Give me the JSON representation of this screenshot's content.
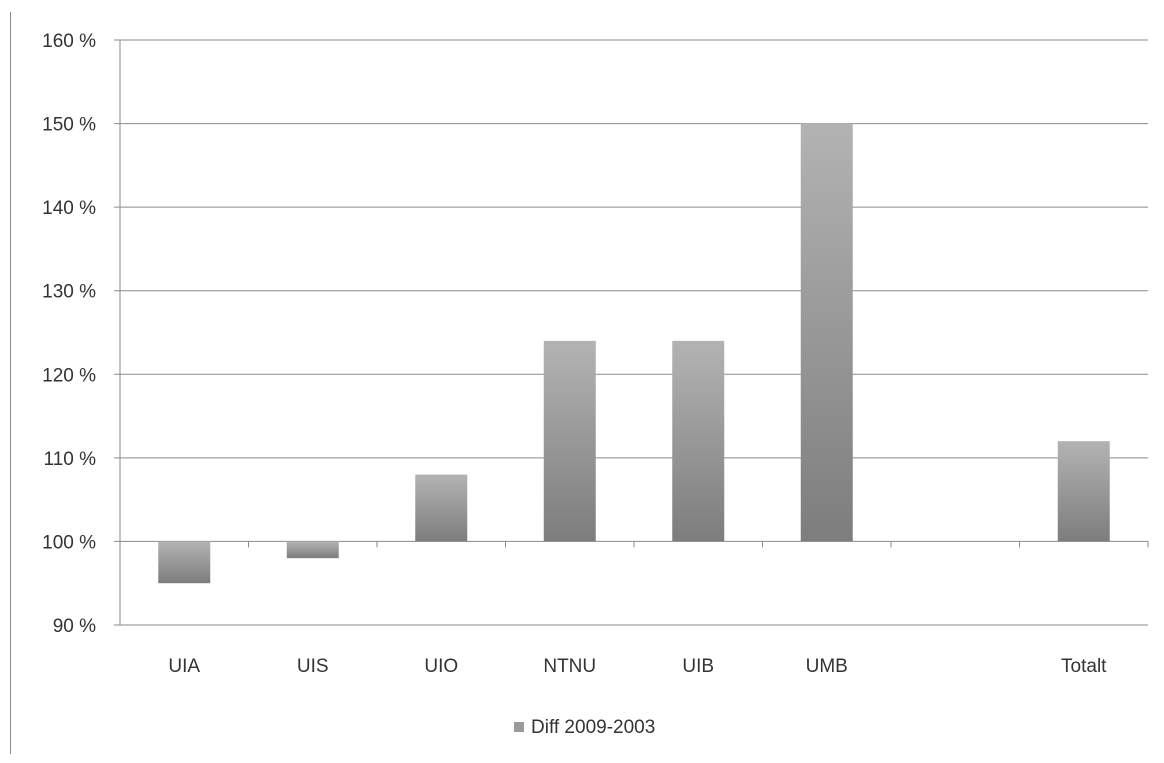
{
  "chart_data": {
    "type": "bar",
    "title": "",
    "xlabel": "",
    "ylabel": "",
    "ylim": [
      0.9,
      1.6
    ],
    "y_ticks": [
      0.9,
      1.0,
      1.1,
      1.2,
      1.3,
      1.4,
      1.5,
      1.6
    ],
    "y_tick_labels": [
      "90 %",
      "100 %",
      "110 %",
      "120 %",
      "130 %",
      "140 %",
      "150 %",
      "160 %"
    ],
    "baseline": 1.0,
    "categories": [
      "UIA",
      "UIS",
      "UIO",
      "NTNU",
      "UIB",
      "UMB",
      "",
      "Totalt"
    ],
    "series": [
      {
        "name": "Diff 2009-2003",
        "values": [
          0.95,
          0.98,
          1.08,
          1.24,
          1.24,
          1.5,
          null,
          1.12
        ],
        "color": "#9a9a9a"
      }
    ],
    "grid": true,
    "legend_position": "bottom"
  }
}
